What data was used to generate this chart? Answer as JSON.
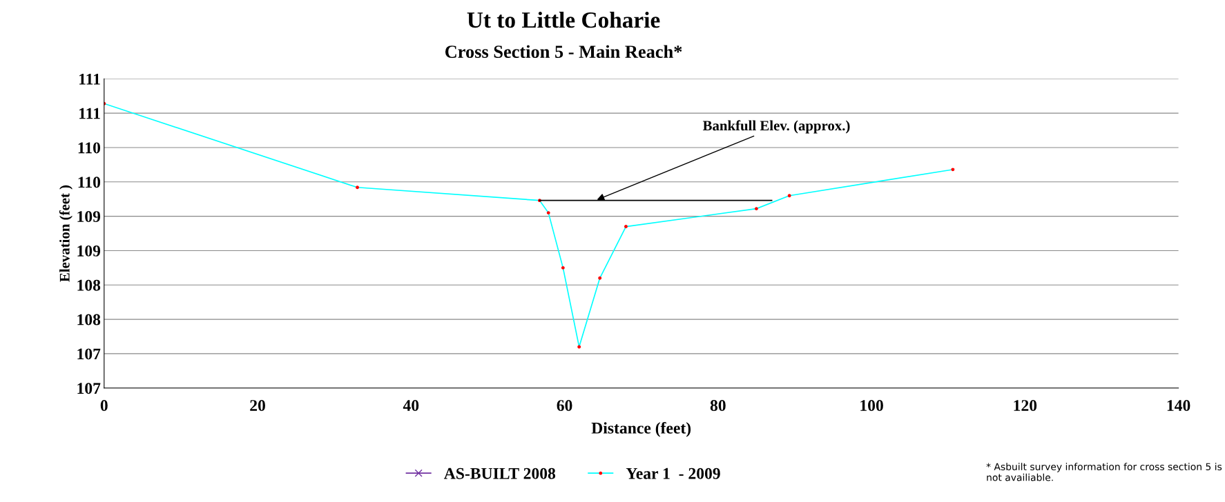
{
  "chart_data": {
    "type": "line",
    "title": "Ut to Little Coharie",
    "subtitle": "Cross Section 5 - Main Reach*",
    "xlabel": "Distance (feet)",
    "ylabel": "Elevation (feet )",
    "xlim": [
      0,
      140
    ],
    "xticks": [
      0,
      20,
      40,
      60,
      80,
      100,
      120,
      140
    ],
    "ylim": [
      106.5,
      111
    ],
    "yticks": [
      {
        "value": 106.5,
        "label": "107"
      },
      {
        "value": 107,
        "label": "107"
      },
      {
        "value": 107.5,
        "label": "108"
      },
      {
        "value": 108,
        "label": "108"
      },
      {
        "value": 108.5,
        "label": "109"
      },
      {
        "value": 109,
        "label": "109"
      },
      {
        "value": 109.5,
        "label": "110"
      },
      {
        "value": 110,
        "label": "110"
      },
      {
        "value": 110.5,
        "label": "111"
      },
      {
        "value": 111,
        "label": "111"
      }
    ],
    "grid": "y",
    "legend": "bottom",
    "series": [
      {
        "name": "AS-BUILT 2008",
        "color": "#7030a0",
        "marker": "cross"
      },
      {
        "name": "Year 1  - 2009",
        "color": "#00ffff",
        "marker": "circle",
        "x": [
          0,
          33.0,
          56.75,
          57.9,
          59.8,
          61.9,
          64.6,
          68.0,
          85.0,
          89.3,
          110.6
        ],
        "values": [
          110.64,
          109.42,
          109.23,
          109.05,
          108.25,
          107.1,
          108.1,
          108.85,
          109.11,
          109.3,
          109.68
        ]
      },
      {
        "color": "#000000",
        "marker": "none",
        "x": [
          56.75,
          87.0
        ],
        "values": [
          109.23,
          109.23
        ]
      }
    ],
    "annotations": [
      {
        "text": "Bankfull Elev. (approx.)",
        "x": 64,
        "y": 109.23
      },
      "* Asbuilt survey information for cross section 5 is not availiable."
    ]
  }
}
